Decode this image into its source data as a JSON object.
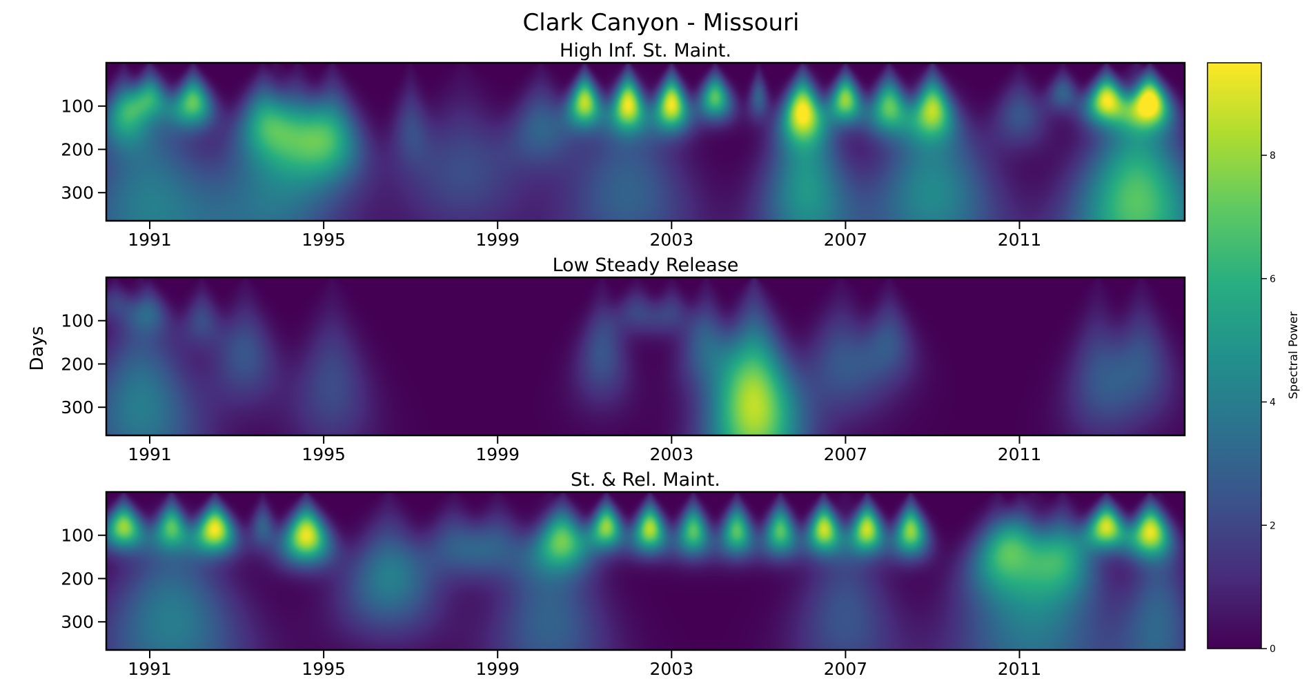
{
  "chart_data": {
    "type": "heatmap",
    "title": "Clark Canyon - Missouri",
    "ylabel": "Days",
    "colorbar": {
      "label": "Spectral Power",
      "ticks": [
        0,
        2,
        4,
        6,
        8
      ],
      "range": [
        0,
        9.5
      ],
      "colormap": "viridis"
    },
    "x_axis": {
      "type": "date-year",
      "range": [
        1990.0,
        2014.8
      ],
      "ticks": [
        1991,
        1995,
        1999,
        2003,
        2007,
        2011
      ],
      "tick_labels": [
        "1991",
        "1995",
        "1999",
        "2003",
        "2007",
        "2011"
      ]
    },
    "y_axis": {
      "range": [
        0,
        365
      ],
      "inverted": true,
      "ticks": [
        100,
        200,
        300
      ],
      "tick_labels": [
        "100",
        "200",
        "300"
      ]
    },
    "panels": [
      {
        "title": "High Inf. St. Maint.",
        "features": [
          {
            "year": 1990.4,
            "period_days": 120,
            "power": 4.5,
            "spread": 0.35
          },
          {
            "year": 1991.0,
            "period_days": 80,
            "power": 5.0,
            "spread": 0.3
          },
          {
            "year": 1992.0,
            "period_days": 90,
            "power": 7.0,
            "spread": 0.3
          },
          {
            "year": 1991.0,
            "period_days": 330,
            "power": 4.0,
            "spread": 1.2
          },
          {
            "year": 1993.6,
            "period_days": 130,
            "power": 4.0,
            "spread": 0.4
          },
          {
            "year": 1994.4,
            "period_days": 150,
            "power": 3.5,
            "spread": 0.5
          },
          {
            "year": 1995.2,
            "period_days": 170,
            "power": 5.0,
            "spread": 0.5
          },
          {
            "year": 1993.9,
            "period_days": 300,
            "power": 3.5,
            "spread": 1.0
          },
          {
            "year": 1997.0,
            "period_days": 150,
            "power": 2.0,
            "spread": 0.3
          },
          {
            "year": 1998.2,
            "period_days": 250,
            "power": 2.2,
            "spread": 0.9
          },
          {
            "year": 2000.0,
            "period_days": 150,
            "power": 3.0,
            "spread": 0.5
          },
          {
            "year": 2001.0,
            "period_days": 90,
            "power": 8.5,
            "spread": 0.25
          },
          {
            "year": 2002.0,
            "period_days": 95,
            "power": 8.5,
            "spread": 0.25
          },
          {
            "year": 2003.0,
            "period_days": 95,
            "power": 9.3,
            "spread": 0.25
          },
          {
            "year": 2004.0,
            "period_days": 80,
            "power": 7.0,
            "spread": 0.25
          },
          {
            "year": 2002.0,
            "period_days": 300,
            "power": 3.0,
            "spread": 1.0
          },
          {
            "year": 2005.0,
            "period_days": 80,
            "power": 3.0,
            "spread": 0.15
          },
          {
            "year": 2006.0,
            "period_days": 110,
            "power": 8.0,
            "spread": 0.3
          },
          {
            "year": 2006.1,
            "period_days": 290,
            "power": 5.0,
            "spread": 0.7
          },
          {
            "year": 2007.0,
            "period_days": 85,
            "power": 8.0,
            "spread": 0.25
          },
          {
            "year": 2008.0,
            "period_days": 100,
            "power": 7.0,
            "spread": 0.3
          },
          {
            "year": 2009.0,
            "period_days": 105,
            "power": 7.0,
            "spread": 0.3
          },
          {
            "year": 2009.0,
            "period_days": 300,
            "power": 4.5,
            "spread": 1.0
          },
          {
            "year": 2011.0,
            "period_days": 120,
            "power": 2.5,
            "spread": 0.4
          },
          {
            "year": 2012.0,
            "period_days": 70,
            "power": 3.0,
            "spread": 0.25
          },
          {
            "year": 2013.0,
            "period_days": 85,
            "power": 9.0,
            "spread": 0.3
          },
          {
            "year": 2014.0,
            "period_days": 90,
            "power": 9.3,
            "spread": 0.3
          },
          {
            "year": 2013.7,
            "period_days": 320,
            "power": 7.0,
            "spread": 1.0
          }
        ]
      },
      {
        "title": "Low Steady Release",
        "features": [
          {
            "year": 1990.2,
            "period_days": 60,
            "power": 1.8,
            "spread": 0.3
          },
          {
            "year": 1991.0,
            "period_days": 80,
            "power": 2.2,
            "spread": 0.3
          },
          {
            "year": 1990.8,
            "period_days": 300,
            "power": 4.0,
            "spread": 0.9
          },
          {
            "year": 1992.2,
            "period_days": 100,
            "power": 2.2,
            "spread": 0.3
          },
          {
            "year": 1993.2,
            "period_days": 180,
            "power": 2.5,
            "spread": 0.5
          },
          {
            "year": 1995.2,
            "period_days": 250,
            "power": 2.2,
            "spread": 0.6
          },
          {
            "year": 2001.4,
            "period_days": 180,
            "power": 2.5,
            "spread": 0.4
          },
          {
            "year": 2002.2,
            "period_days": 80,
            "power": 2.0,
            "spread": 0.35
          },
          {
            "year": 2003.0,
            "period_days": 80,
            "power": 1.8,
            "spread": 0.3
          },
          {
            "year": 2003.8,
            "period_days": 160,
            "power": 3.0,
            "spread": 0.4
          },
          {
            "year": 2004.9,
            "period_days": 300,
            "power": 8.5,
            "spread": 0.7
          },
          {
            "year": 2006.9,
            "period_days": 200,
            "power": 2.5,
            "spread": 0.6
          },
          {
            "year": 2008.0,
            "period_days": 150,
            "power": 2.5,
            "spread": 0.4
          },
          {
            "year": 2012.8,
            "period_days": 230,
            "power": 2.2,
            "spread": 0.5
          },
          {
            "year": 2013.8,
            "period_days": 200,
            "power": 2.5,
            "spread": 0.5
          }
        ]
      },
      {
        "title": "St. & Rel. Maint.",
        "features": [
          {
            "year": 1990.4,
            "period_days": 80,
            "power": 8.0,
            "spread": 0.3
          },
          {
            "year": 1991.5,
            "period_days": 80,
            "power": 6.0,
            "spread": 0.25
          },
          {
            "year": 1992.5,
            "period_days": 85,
            "power": 9.3,
            "spread": 0.3
          },
          {
            "year": 1991.5,
            "period_days": 300,
            "power": 4.0,
            "spread": 1.1
          },
          {
            "year": 1993.6,
            "period_days": 80,
            "power": 3.0,
            "spread": 0.2
          },
          {
            "year": 1994.6,
            "period_days": 100,
            "power": 9.3,
            "spread": 0.35
          },
          {
            "year": 1996.5,
            "period_days": 200,
            "power": 4.0,
            "spread": 0.7
          },
          {
            "year": 1998.0,
            "period_days": 120,
            "power": 2.5,
            "spread": 0.5
          },
          {
            "year": 1999.0,
            "period_days": 120,
            "power": 2.5,
            "spread": 0.5
          },
          {
            "year": 2000.5,
            "period_days": 110,
            "power": 6.5,
            "spread": 0.4
          },
          {
            "year": 2000.2,
            "period_days": 300,
            "power": 3.0,
            "spread": 0.9
          },
          {
            "year": 2001.5,
            "period_days": 80,
            "power": 8.0,
            "spread": 0.25
          },
          {
            "year": 2002.5,
            "period_days": 85,
            "power": 8.5,
            "spread": 0.25
          },
          {
            "year": 2003.5,
            "period_days": 90,
            "power": 7.0,
            "spread": 0.25
          },
          {
            "year": 2004.5,
            "period_days": 90,
            "power": 7.0,
            "spread": 0.25
          },
          {
            "year": 2005.5,
            "period_days": 90,
            "power": 7.0,
            "spread": 0.25
          },
          {
            "year": 2006.5,
            "period_days": 85,
            "power": 8.5,
            "spread": 0.25
          },
          {
            "year": 2007.5,
            "period_days": 85,
            "power": 8.5,
            "spread": 0.25
          },
          {
            "year": 2008.5,
            "period_days": 90,
            "power": 8.0,
            "spread": 0.25
          },
          {
            "year": 2007.0,
            "period_days": 290,
            "power": 2.5,
            "spread": 0.8
          },
          {
            "year": 2010.5,
            "period_days": 150,
            "power": 4.0,
            "spread": 0.5
          },
          {
            "year": 2011.0,
            "period_days": 110,
            "power": 3.0,
            "spread": 0.4
          },
          {
            "year": 2012.0,
            "period_days": 150,
            "power": 4.5,
            "spread": 0.5
          },
          {
            "year": 2011.3,
            "period_days": 310,
            "power": 3.8,
            "spread": 1.2
          },
          {
            "year": 2013.0,
            "period_days": 80,
            "power": 9.0,
            "spread": 0.3
          },
          {
            "year": 2014.0,
            "period_days": 90,
            "power": 8.5,
            "spread": 0.3
          },
          {
            "year": 2014.2,
            "period_days": 300,
            "power": 3.0,
            "spread": 0.6
          }
        ]
      }
    ]
  }
}
